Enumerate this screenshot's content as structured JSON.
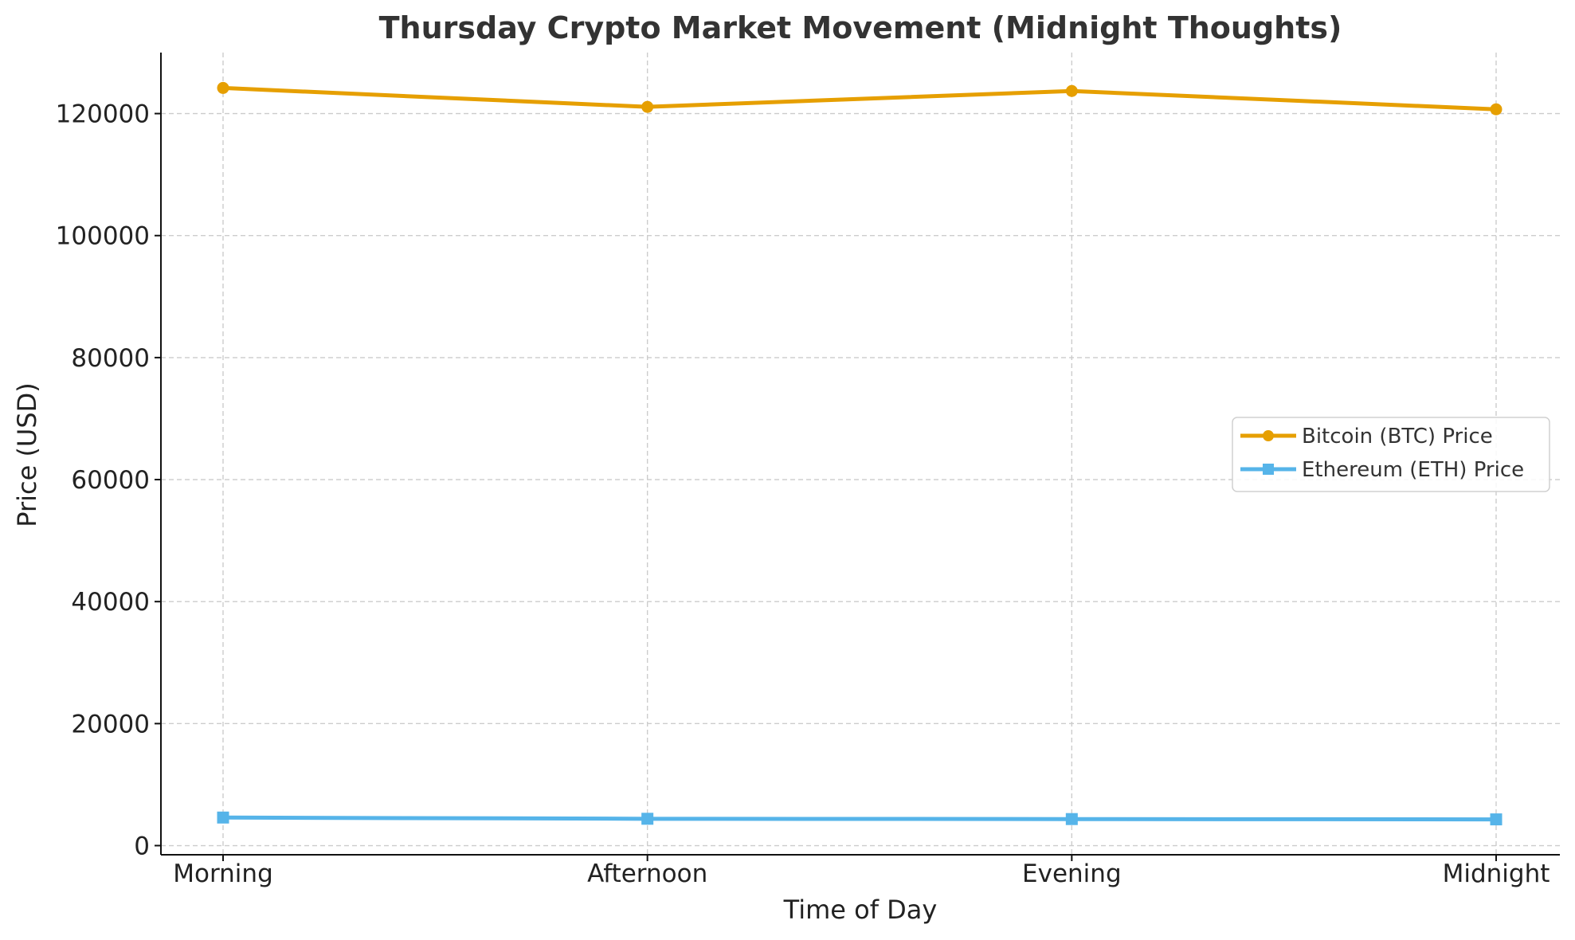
{
  "chart_data": {
    "type": "line",
    "title": "Thursday Crypto Market Movement (Midnight Thoughts)",
    "xlabel": "Time of Day",
    "ylabel": "Price (USD)",
    "categories": [
      "Morning",
      "Afternoon",
      "Evening",
      "Midnight"
    ],
    "ylim": [
      -1500,
      130000
    ],
    "yticks": [
      0,
      20000,
      40000,
      60000,
      80000,
      100000,
      120000
    ],
    "grid": true,
    "legend_position": "center-right",
    "series": [
      {
        "name": "Bitcoin (BTC) Price",
        "values": [
          124200,
          121100,
          123700,
          120700
        ],
        "color": "#E69F00",
        "marker": "circle"
      },
      {
        "name": "Ethereum (ETH) Price",
        "values": [
          4600,
          4400,
          4350,
          4300
        ],
        "color": "#56B4E9",
        "marker": "square"
      }
    ]
  }
}
